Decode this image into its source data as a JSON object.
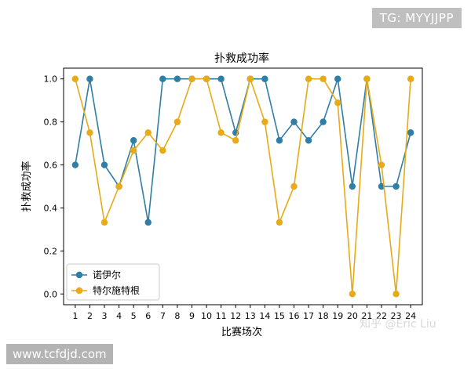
{
  "watermarks": {
    "tg": "TG: MYYJJPP",
    "site": "www.tcfdjd.com",
    "zhihu": "知乎 @Eric Liu"
  },
  "chart_data": {
    "type": "line",
    "title": "扑救成功率",
    "xlabel": "比赛场次",
    "ylabel": "扑救成功率",
    "x": [
      1,
      2,
      3,
      4,
      5,
      6,
      7,
      8,
      9,
      10,
      11,
      12,
      13,
      14,
      15,
      16,
      17,
      18,
      19,
      20,
      21,
      22,
      23,
      24
    ],
    "ylim": [
      -0.05,
      1.05
    ],
    "yticks": [
      0.0,
      0.2,
      0.4,
      0.6,
      0.8,
      1.0
    ],
    "ytick_labels": [
      "0.0",
      "0.2",
      "0.4",
      "0.6",
      "0.8",
      "1.0"
    ],
    "grid": false,
    "legend_position": "lower-left",
    "series": [
      {
        "name": "诺伊尔",
        "color": "#2e7ea6",
        "values": [
          0.6,
          1.0,
          0.6,
          0.5,
          0.714,
          0.333,
          1.0,
          1.0,
          1.0,
          1.0,
          1.0,
          0.75,
          1.0,
          1.0,
          0.714,
          0.8,
          0.714,
          0.8,
          1.0,
          0.5,
          1.0,
          0.5,
          0.5,
          0.75
        ]
      },
      {
        "name": "特尔施特根",
        "color": "#e8aa17",
        "values": [
          1.0,
          0.75,
          0.333,
          0.5,
          0.667,
          0.75,
          0.667,
          0.8,
          1.0,
          1.0,
          0.75,
          0.714,
          1.0,
          0.8,
          0.333,
          0.5,
          1.0,
          1.0,
          0.889,
          0.0,
          1.0,
          0.6,
          0.0,
          1.0
        ]
      }
    ]
  }
}
